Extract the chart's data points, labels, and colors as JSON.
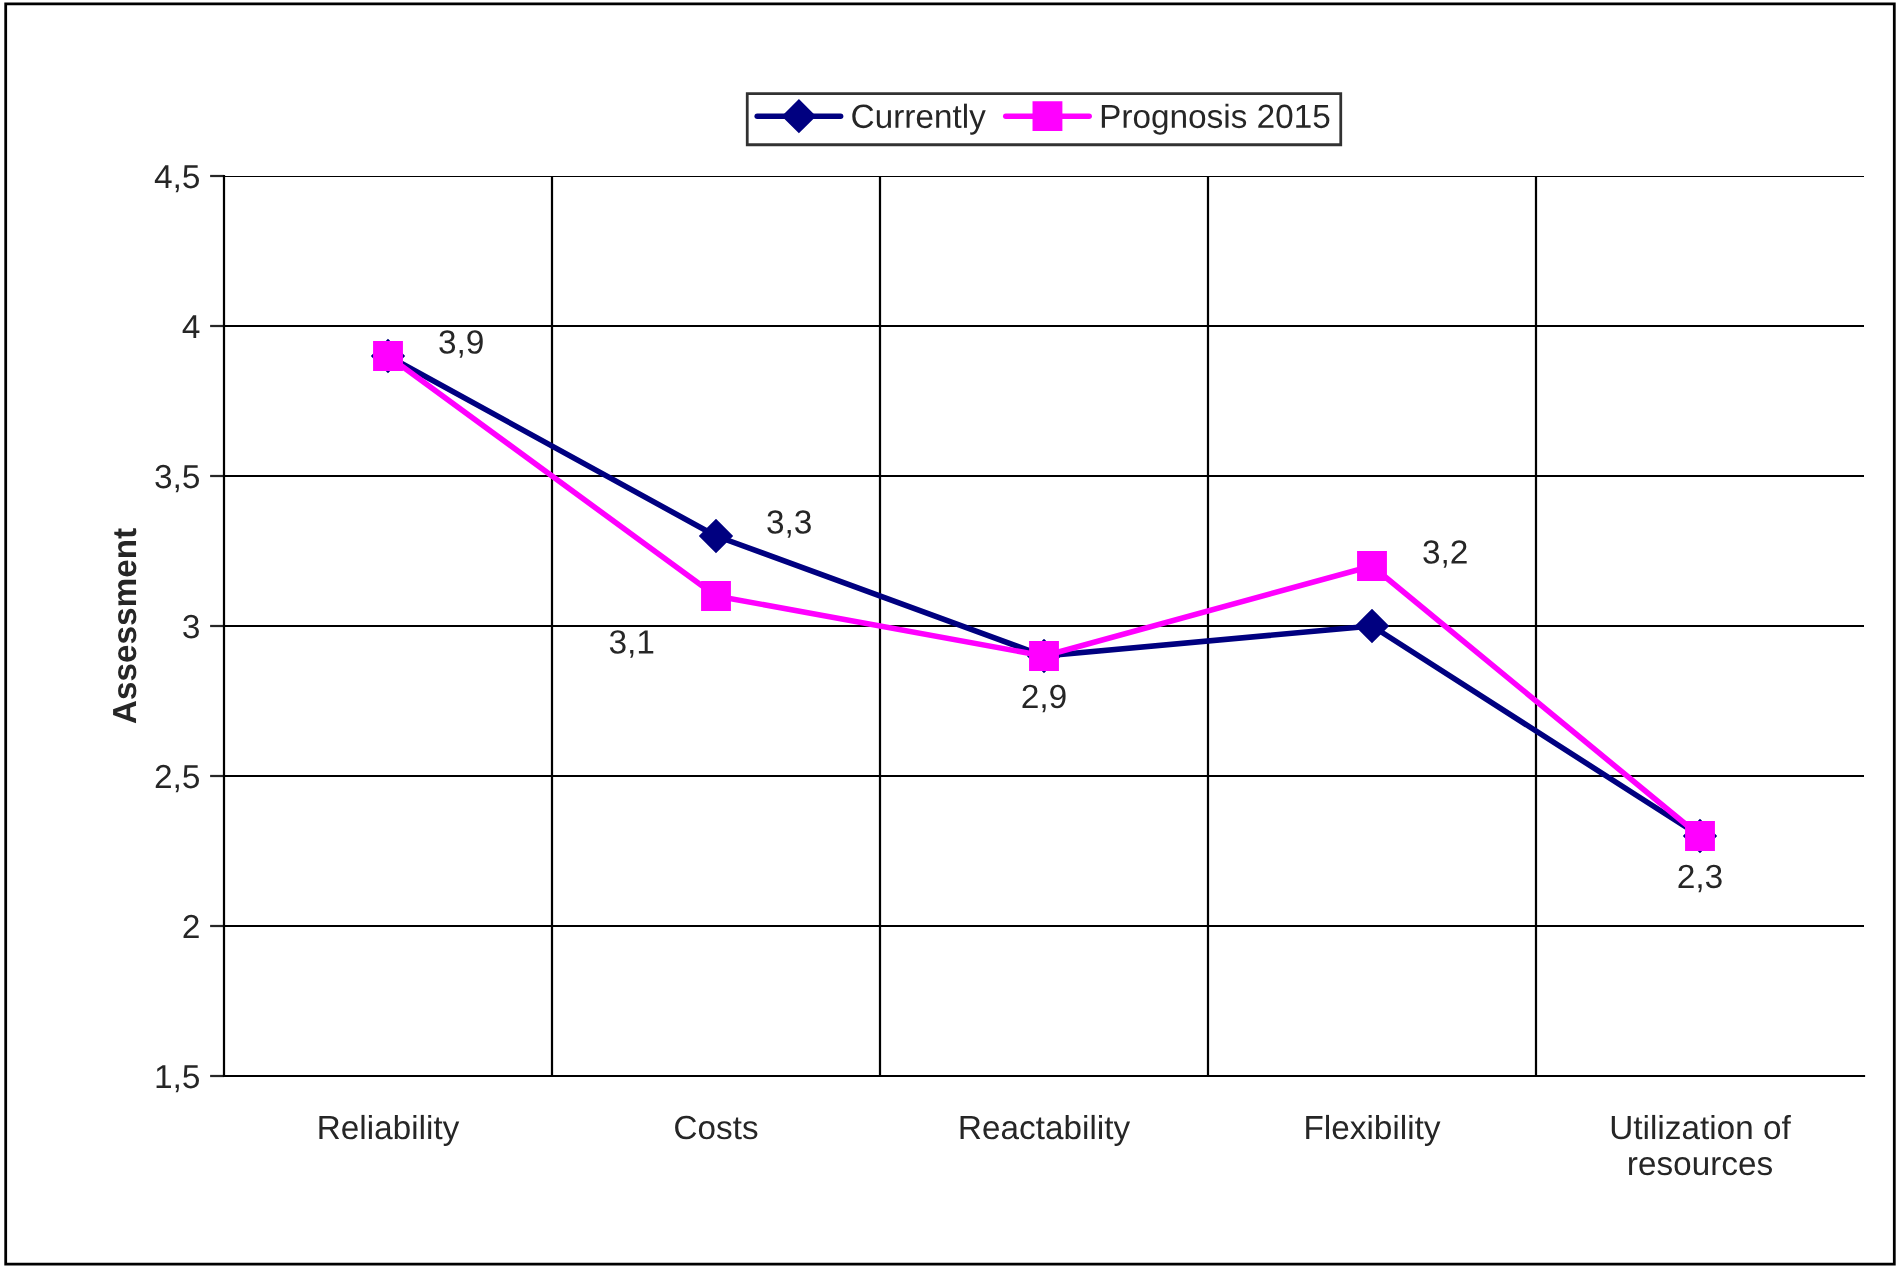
{
  "chart_data": {
    "type": "line",
    "ylabel": "Assessment",
    "categories": [
      "Reliability",
      "Costs",
      "Reactability",
      "Flexibility",
      "Utilization of\nresources"
    ],
    "series": [
      {
        "name": "Currently",
        "color": "#000080",
        "marker": "diamond",
        "values": [
          3.9,
          3.3,
          2.9,
          3.0,
          2.3
        ],
        "value_labels": [
          "3,9",
          "3,3",
          "2,9",
          null,
          "2,3"
        ]
      },
      {
        "name": "Prognosis 2015",
        "color": "#ff00ff",
        "marker": "square",
        "values": [
          3.9,
          3.1,
          2.9,
          3.2,
          2.3
        ],
        "value_labels": [
          null,
          "3,1",
          null,
          "3,2",
          null
        ]
      }
    ],
    "ylim": [
      1.5,
      4.5
    ],
    "yticks": [
      {
        "value": 1.5,
        "label": "1,5"
      },
      2,
      {
        "value": 2.5,
        "label": "2,5"
      },
      3,
      {
        "value": 3.5,
        "label": "3,5"
      },
      4,
      {
        "value": 4.5,
        "label": "4,5"
      }
    ],
    "grid": true,
    "legend": "top"
  }
}
